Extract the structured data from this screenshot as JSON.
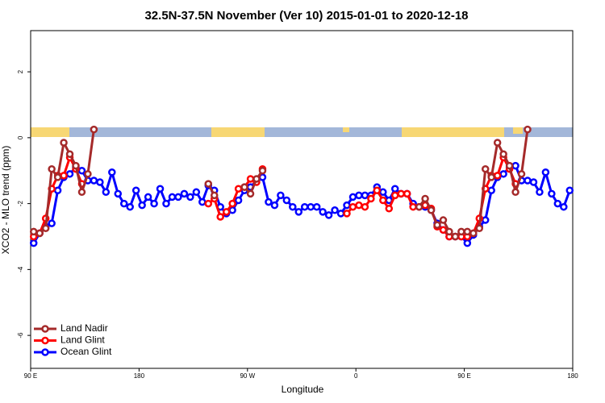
{
  "chart_data": {
    "type": "line",
    "title": "32.5N-37.5N November (Ver 10)   2015-01-01 to 2020-12-18",
    "x_label": "Longitude",
    "y_label": "XCO2 - MLO trend (ppm)",
    "xlim": [
      90,
      540
    ],
    "ylim": [
      -7,
      3.25
    ],
    "xticks": [
      {
        "value": 90,
        "label": "90 E"
      },
      180,
      {
        "value": 270,
        "label": "90 W"
      },
      {
        "value": 360,
        "label": "0"
      },
      {
        "value": 450,
        "label": "90 E"
      },
      {
        "value": 540,
        "label": "180"
      }
    ],
    "yticks": [
      -6,
      -4,
      -2,
      0,
      2
    ],
    "legend": "bottom-left",
    "x": [
      92.5,
      97.5,
      102.5,
      107.5,
      112.5,
      117.5,
      122.5,
      127.5,
      132.5,
      137.5,
      142.5,
      147.5,
      152.5,
      157.5,
      162.5,
      167.5,
      172.5,
      177.5,
      182.5,
      187.5,
      192.5,
      197.5,
      202.5,
      207.5,
      212.5,
      217.5,
      222.5,
      227.5,
      232.5,
      237.5,
      242.5,
      247.5,
      252.5,
      257.5,
      262.5,
      267.5,
      272.5,
      277.5,
      282.5,
      287.5,
      292.5,
      297.5,
      302.5,
      307.5,
      312.5,
      317.5,
      322.5,
      327.5,
      332.5,
      337.5,
      342.5,
      347.5,
      352.5,
      357.5,
      362.5,
      367.5,
      372.5,
      377.5,
      382.5,
      387.5,
      392.5,
      397.5,
      402.5,
      407.5,
      412.5,
      417.5,
      422.5,
      427.5,
      432.5,
      437.5,
      442.5,
      447.5,
      452.5,
      457.5,
      462.5,
      467.5,
      472.5,
      477.5,
      482.5,
      487.5,
      492.5,
      497.5,
      502.5,
      507.5,
      512.5,
      517.5,
      522.5,
      527.5,
      532.5,
      537.5
    ],
    "series": [
      {
        "name": "Land Nadir",
        "color": "#a52a2a",
        "values": [
          -2.85,
          -2.9,
          -2.75,
          -0.95,
          -1.2,
          -0.15,
          -0.5,
          -0.85,
          -1.65,
          -1.1,
          0.25,
          null,
          null,
          null,
          null,
          null,
          null,
          null,
          null,
          null,
          null,
          null,
          null,
          null,
          null,
          null,
          null,
          null,
          null,
          -1.4,
          -1.75,
          null,
          null,
          null,
          null,
          -1.5,
          -1.7,
          -1.25,
          -1.0,
          null,
          null,
          null,
          null,
          null,
          null,
          null,
          null,
          null,
          null,
          null,
          null,
          null,
          null,
          null,
          null,
          null,
          null,
          null,
          null,
          null,
          null,
          null,
          null,
          null,
          -2.1,
          -1.85,
          -2.2,
          -2.65,
          -2.5,
          -2.85,
          -3.0,
          -2.85,
          -2.85,
          -2.9,
          -2.75,
          -0.95,
          -1.2,
          -0.15,
          -0.5,
          -0.85,
          -1.65,
          -1.1,
          0.25,
          null,
          null,
          null,
          null,
          null,
          null,
          null
        ]
      },
      {
        "name": "Land Glint",
        "color": "#ff0000",
        "values": [
          -3.0,
          -2.9,
          -2.45,
          -1.55,
          -1.15,
          -1.15,
          -0.6,
          -0.95,
          -1.4,
          null,
          null,
          null,
          null,
          null,
          null,
          null,
          null,
          null,
          null,
          null,
          null,
          null,
          null,
          null,
          null,
          null,
          null,
          null,
          null,
          -2.0,
          -1.85,
          -2.4,
          -2.25,
          -2.0,
          -1.55,
          -1.5,
          -1.25,
          -1.35,
          -0.95,
          null,
          null,
          null,
          null,
          null,
          null,
          null,
          null,
          null,
          null,
          null,
          null,
          null,
          -2.3,
          -2.1,
          -2.05,
          -2.1,
          -1.85,
          -1.6,
          -1.9,
          -2.15,
          -1.75,
          -1.7,
          -1.7,
          -2.1,
          -2.1,
          -2.05,
          -2.15,
          -2.7,
          -2.8,
          -3.0,
          -3.0,
          -3.0,
          -3.0,
          -2.9,
          -2.45,
          -1.55,
          -1.15,
          -1.15,
          -0.6,
          -0.95,
          -1.4,
          null,
          null,
          null,
          null,
          null,
          null,
          null,
          null,
          null
        ]
      },
      {
        "name": "Ocean Glint",
        "color": "#0000ff",
        "values": [
          -3.2,
          -2.9,
          -2.7,
          -2.6,
          -1.6,
          -1.2,
          -1.1,
          -0.9,
          -1.0,
          -1.3,
          -1.3,
          -1.35,
          -1.65,
          -1.05,
          -1.7,
          -2.0,
          -2.1,
          -1.6,
          -2.05,
          -1.8,
          -2.0,
          -1.55,
          -2.0,
          -1.8,
          -1.8,
          -1.7,
          -1.8,
          -1.65,
          -1.95,
          -1.45,
          -1.6,
          -2.1,
          -2.3,
          -2.2,
          -1.9,
          -1.6,
          -1.5,
          -1.3,
          -1.2,
          -1.95,
          -2.05,
          -1.75,
          -1.9,
          -2.1,
          -2.25,
          -2.1,
          -2.1,
          -2.1,
          -2.25,
          -2.35,
          -2.2,
          -2.3,
          -2.05,
          -1.8,
          -1.75,
          -1.75,
          -1.75,
          -1.5,
          -1.65,
          -1.9,
          -1.55,
          -1.7,
          -1.7,
          -2.0,
          -2.1,
          -2.1,
          -2.2,
          -2.6,
          -2.8,
          -3.0,
          -3.0,
          -3.0,
          -3.2,
          -2.95,
          -2.7,
          -2.5,
          -1.6,
          -1.2,
          -1.1,
          -0.9,
          -0.85,
          -1.3,
          -1.3,
          -1.35,
          -1.65,
          -1.05,
          -1.7,
          -2.0,
          -2.1,
          -1.6
        ]
      }
    ]
  }
}
